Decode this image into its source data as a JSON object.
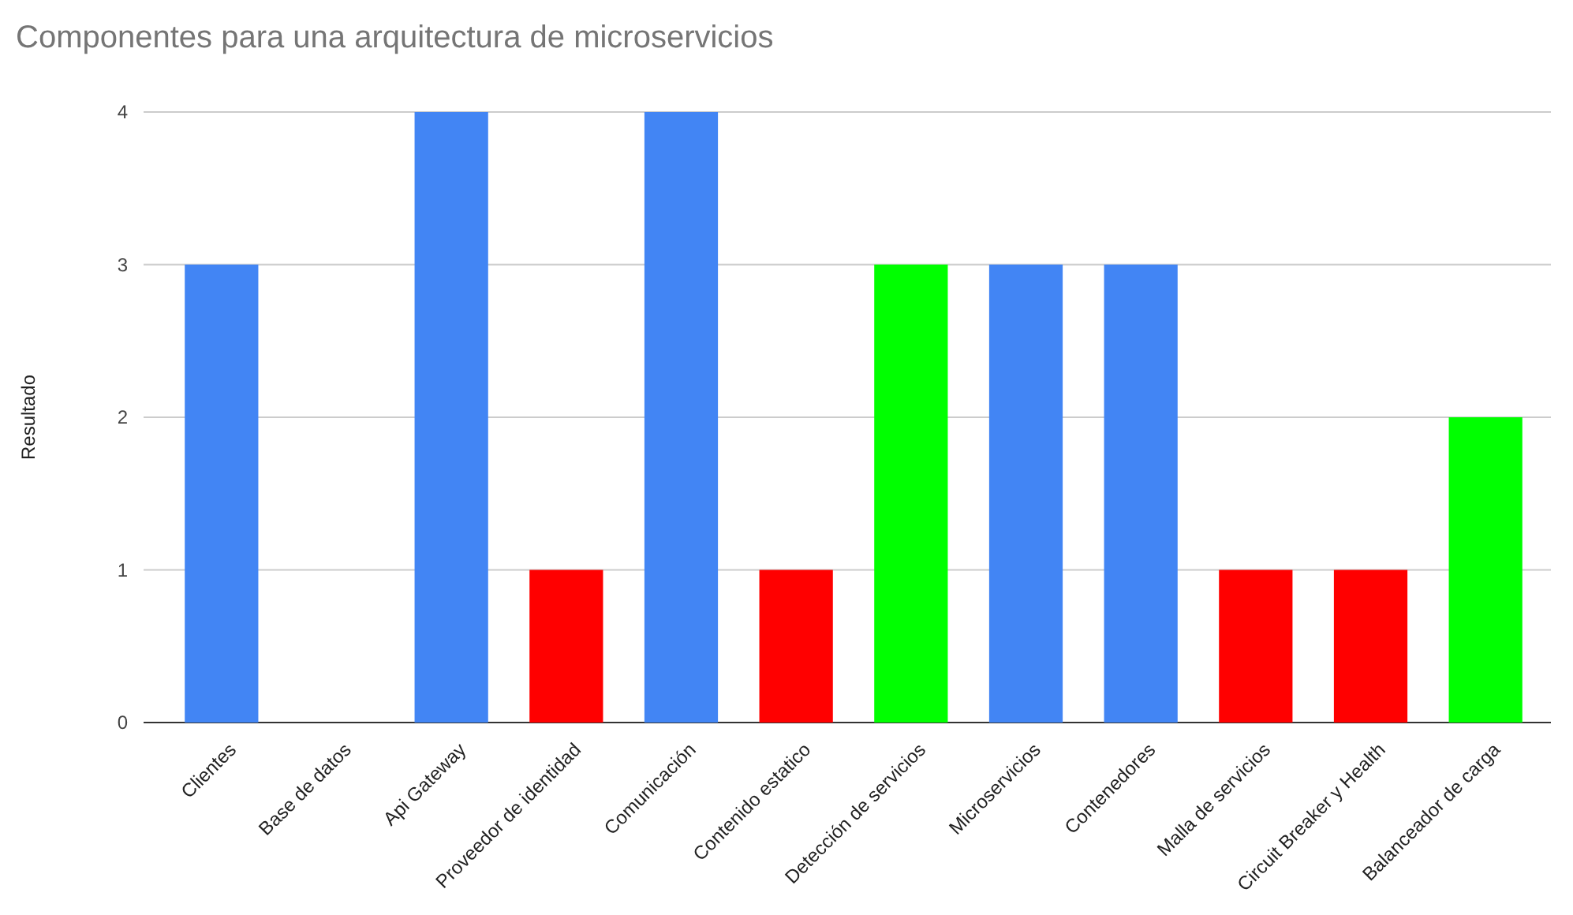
{
  "chart_data": {
    "type": "bar",
    "title": "Componentes para una arquitectura de microservicios",
    "ylabel": "Resultado",
    "categories": [
      "Clientes",
      "Base de datos",
      "Api Gateway",
      "Proveedor de identidad",
      "Comunicación",
      "Contenido estatico",
      "Detección de servicios",
      "Microservicios",
      "Contenedores",
      "Malla de servicios",
      "Circuit Breaker y Health",
      "Balanceador de carga"
    ],
    "values": [
      3,
      0,
      4,
      1,
      4,
      1,
      3,
      3,
      3,
      1,
      1,
      2
    ],
    "colors": [
      "#4285f4",
      "#4285f4",
      "#4285f4",
      "#ff0000",
      "#4285f4",
      "#ff0000",
      "#00ff00",
      "#4285f4",
      "#4285f4",
      "#ff0000",
      "#ff0000",
      "#00ff00"
    ],
    "ylim": [
      0,
      4
    ],
    "yticks": [
      0,
      1,
      2,
      3,
      4
    ],
    "grid": "y"
  }
}
